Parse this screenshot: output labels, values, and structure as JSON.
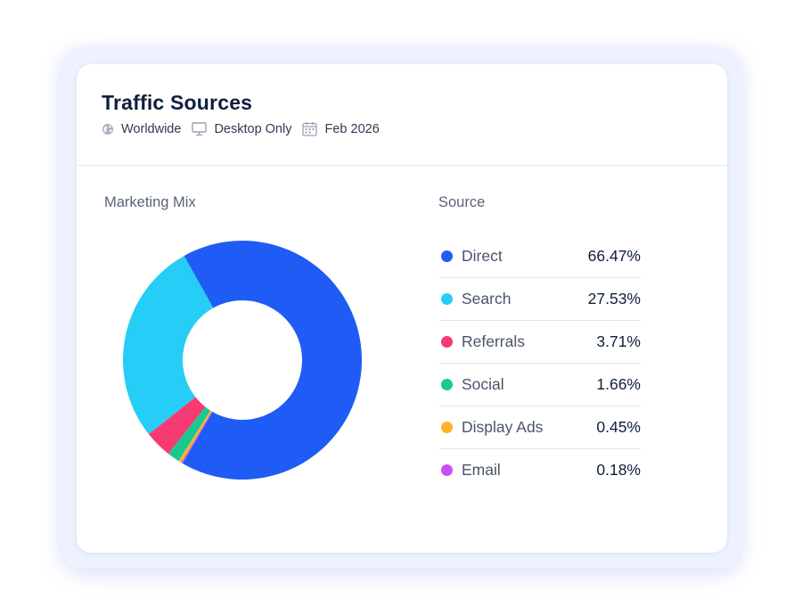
{
  "card": {
    "title": "Traffic Sources",
    "meta": {
      "region": "Worldwide",
      "device": "Desktop Only",
      "period": "Feb 2026"
    },
    "icons": {
      "region": "globe-icon",
      "device": "monitor-icon",
      "period": "calendar-icon"
    }
  },
  "chart_data": {
    "type": "pie",
    "title": "Marketing Mix",
    "legend_title": "Source",
    "legend_placement": "right",
    "donut": true,
    "categories": [
      "Direct",
      "Search",
      "Referrals",
      "Social",
      "Display Ads",
      "Email"
    ],
    "values": [
      66.47,
      27.53,
      3.71,
      1.66,
      0.45,
      0.18
    ],
    "value_labels": [
      "66.47%",
      "27.53%",
      "3.71%",
      "1.66%",
      "0.45%",
      "0.18%"
    ],
    "colors": [
      "#1f5cf5",
      "#26cdf6",
      "#f63a72",
      "#18c993",
      "#f9b22a",
      "#c452f2"
    ]
  }
}
